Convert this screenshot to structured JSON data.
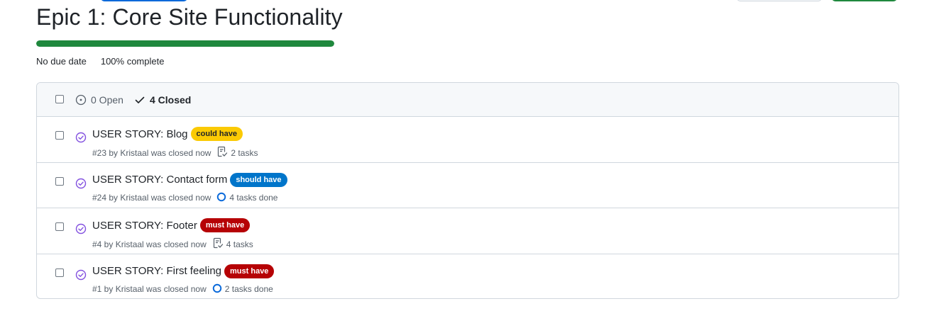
{
  "milestone": {
    "title": "Epic 1: Core Site Functionality",
    "progress_percent": 100,
    "due": "No due date",
    "complete": "100% complete"
  },
  "filters": {
    "open": "0 Open",
    "closed": "4 Closed"
  },
  "colors": {
    "progress": "#1f883d",
    "closed_icon": "#8250df",
    "could_have": "#fbca04",
    "should_have": "#0075ca",
    "must_have": "#b60205"
  },
  "issues": [
    {
      "title": "USER STORY: Blog",
      "label": {
        "text": "could have",
        "bg": "#fbca04",
        "fg": "#1f2328"
      },
      "meta": "#23 by Kristaal was closed now",
      "tasks": "2 tasks",
      "task_icon": "tasklist-icon"
    },
    {
      "title": "USER STORY: Contact form",
      "label": {
        "text": "should have",
        "bg": "#0075ca",
        "fg": "#ffffff"
      },
      "meta": "#24 by Kristaal was closed now",
      "tasks": "4 tasks done",
      "task_icon": "progress-circle-icon"
    },
    {
      "title": "USER STORY: Footer",
      "label": {
        "text": "must have",
        "bg": "#b60205",
        "fg": "#ffffff"
      },
      "meta": "#4 by Kristaal was closed now",
      "tasks": "4 tasks",
      "task_icon": "tasklist-icon"
    },
    {
      "title": "USER STORY: First feeling",
      "label": {
        "text": "must have",
        "bg": "#b60205",
        "fg": "#ffffff"
      },
      "meta": "#1 by Kristaal was closed now",
      "tasks": "2 tasks done",
      "task_icon": "progress-circle-icon"
    }
  ]
}
